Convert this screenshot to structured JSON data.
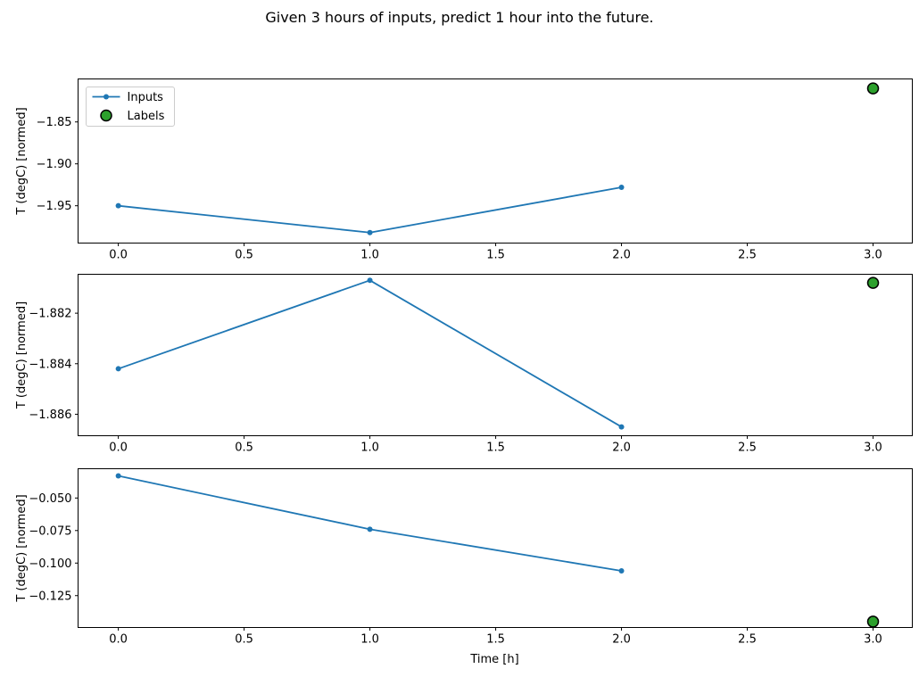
{
  "title": "Given 3 hours of inputs, predict 1 hour into the future.",
  "xlabel": "Time [h]",
  "legend": {
    "entries": [
      "Inputs",
      "Labels"
    ]
  },
  "colors": {
    "inputs": "#1f77b4",
    "labels_fill": "#2ca02c",
    "labels_edge": "#000000",
    "spine": "#000000",
    "text": "#000000",
    "legend_border": "#cccccc",
    "background": "#ffffff"
  },
  "chart_data": [
    {
      "id": "subplot-1",
      "type": "line",
      "title": "",
      "xlabel": "",
      "ylabel": "T (degC) [normed]",
      "x": [
        0,
        1,
        2
      ],
      "series": [
        {
          "name": "Inputs",
          "values": [
            -1.95,
            -1.982,
            -1.928
          ]
        }
      ],
      "scatter": {
        "name": "Labels",
        "x": [
          3
        ],
        "values": [
          -1.81
        ]
      },
      "xtick_values": [
        0,
        0.5,
        1,
        1.5,
        2,
        2.5,
        3
      ],
      "xtick_labels": [
        "0.0",
        "0.5",
        "1.0",
        "1.5",
        "2.0",
        "2.5",
        "3.0"
      ],
      "ytick_values": [
        -1.85,
        -1.9,
        -1.95
      ],
      "ytick_labels": [
        "−1.85",
        "−1.90",
        "−1.95"
      ],
      "xlim": [
        -0.16,
        3.156
      ],
      "ylim": [
        -1.9945,
        -1.7987
      ],
      "grid": false,
      "legend": true,
      "legend_position": "upper left",
      "legend_entries": [
        "Inputs",
        "Labels"
      ]
    },
    {
      "id": "subplot-2",
      "type": "line",
      "title": "",
      "xlabel": "",
      "ylabel": "T (degC) [normed]",
      "x": [
        0,
        1,
        2
      ],
      "series": [
        {
          "name": "Inputs",
          "values": [
            -1.8842,
            -1.8807,
            -1.8865
          ]
        }
      ],
      "scatter": {
        "name": "Labels",
        "x": [
          3
        ],
        "values": [
          -1.8808
        ]
      },
      "xtick_values": [
        0,
        0.5,
        1,
        1.5,
        2,
        2.5,
        3
      ],
      "xtick_labels": [
        "0.0",
        "0.5",
        "1.0",
        "1.5",
        "2.0",
        "2.5",
        "3.0"
      ],
      "ytick_values": [
        -1.882,
        -1.884,
        -1.886
      ],
      "ytick_labels": [
        "−1.882",
        "−1.884",
        "−1.886"
      ],
      "xlim": [
        -0.16,
        3.156
      ],
      "ylim": [
        -1.88685,
        -1.88046
      ],
      "grid": false,
      "legend": false,
      "legend_entries": []
    },
    {
      "id": "subplot-3",
      "type": "line",
      "title": "",
      "xlabel": "Time [h]",
      "ylabel": "T (degC) [normed]",
      "x": [
        0,
        1,
        2
      ],
      "series": [
        {
          "name": "Inputs",
          "values": [
            -0.033,
            -0.074,
            -0.106
          ]
        }
      ],
      "scatter": {
        "name": "Labels",
        "x": [
          3
        ],
        "values": [
          -0.145
        ]
      },
      "xtick_values": [
        0,
        0.5,
        1,
        1.5,
        2,
        2.5,
        3
      ],
      "xtick_labels": [
        "0.0",
        "0.5",
        "1.0",
        "1.5",
        "2.0",
        "2.5",
        "3.0"
      ],
      "ytick_values": [
        -0.05,
        -0.075,
        -0.1,
        -0.125
      ],
      "ytick_labels": [
        "−0.050",
        "−0.075",
        "−0.100",
        "−0.125"
      ],
      "xlim": [
        -0.16,
        3.156
      ],
      "ylim": [
        -0.1495,
        -0.0275
      ],
      "grid": false,
      "legend": false,
      "legend_entries": []
    }
  ]
}
